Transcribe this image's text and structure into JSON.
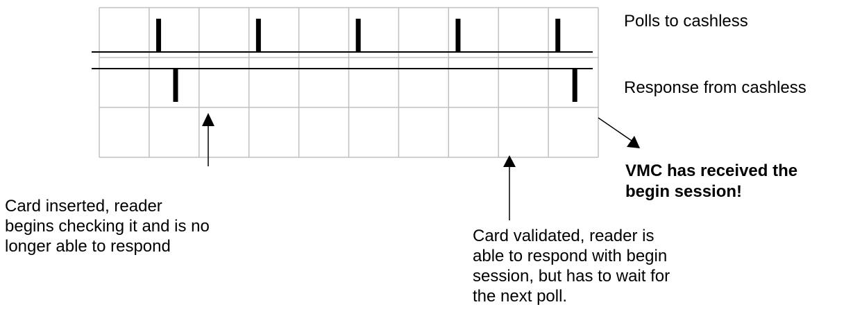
{
  "labels": {
    "polls": "Polls to cashless",
    "response": "Response from cashless",
    "vmc_line1": "VMC has received the",
    "vmc_line2": "begin session!",
    "card_inserted": [
      "Card inserted, reader",
      "begins checking it and is no",
      "longer able to respond"
    ],
    "card_validated": [
      "Card validated, reader is",
      "able to respond with begin",
      "session, but has to wait for",
      "the next poll."
    ]
  },
  "timeline": {
    "columns": 10,
    "rows": 3,
    "poll_pulse_columns": [
      1,
      3,
      5,
      7,
      9
    ],
    "response_pulse_columns": [
      1,
      9
    ]
  },
  "colors": {
    "grid": "#c0c0c0",
    "ink": "#000000"
  }
}
